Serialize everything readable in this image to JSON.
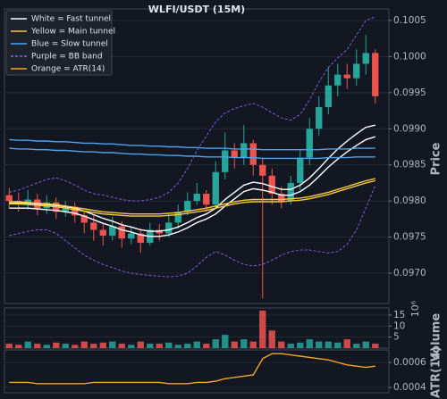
{
  "chart_data": {
    "type": "candlestick",
    "title": "WLFI/USDT (15M)",
    "y_label": "Price",
    "volume_label": "Volume",
    "volume_offset_label": "10⁶",
    "atr_label": "ATR(14)",
    "up_color": "#26a69a",
    "down_color": "#ef5350",
    "grid": true,
    "ylim": [
      0.09658,
      0.10066
    ],
    "yticks": [
      {
        "value": 0.097,
        "label": "0.0970"
      },
      {
        "value": 0.0975,
        "label": "0.0975"
      },
      {
        "value": 0.098,
        "label": "0.0980"
      },
      {
        "value": 0.0985,
        "label": "0.0985"
      },
      {
        "value": 0.099,
        "label": "0.0990"
      },
      {
        "value": 0.0995,
        "label": "0.0995"
      },
      {
        "value": 0.1,
        "label": "0.1000"
      },
      {
        "value": 0.1005,
        "label": "0.1005"
      }
    ],
    "volume_ylim": [
      0,
      18.2
    ],
    "volume_yticks": [
      5,
      10,
      15
    ],
    "atr_ylim": [
      0.000357,
      0.0007
    ],
    "atr_yticks": [
      0.0004,
      0.0006
    ],
    "open": [
      0.09808,
      0.098,
      0.09795,
      0.09802,
      0.0979,
      0.09798,
      0.09785,
      0.09792,
      0.0978,
      0.0977,
      0.0976,
      0.09752,
      0.09765,
      0.09748,
      0.09755,
      0.09742,
      0.0976,
      0.09755,
      0.0977,
      0.09785,
      0.098,
      0.0981,
      0.09795,
      0.0984,
      0.0987,
      0.0986,
      0.0988,
      0.0985,
      0.09835,
      0.0981,
      0.098,
      0.09825,
      0.0986,
      0.099,
      0.0993,
      0.0996,
      0.09975,
      0.0997,
      0.0999,
      0.10005
    ],
    "high": [
      0.09818,
      0.09812,
      0.09815,
      0.0981,
      0.09808,
      0.09805,
      0.098,
      0.09798,
      0.09785,
      0.0978,
      0.0977,
      0.09778,
      0.09772,
      0.09765,
      0.09762,
      0.0977,
      0.09768,
      0.09782,
      0.09795,
      0.09812,
      0.09825,
      0.09815,
      0.09855,
      0.09895,
      0.0988,
      0.09905,
      0.09885,
      0.0986,
      0.09845,
      0.0982,
      0.09835,
      0.0987,
      0.09915,
      0.09945,
      0.09985,
      0.0999,
      0.0999,
      0.1001,
      0.1003,
      0.1001
    ],
    "low": [
      0.0979,
      0.09785,
      0.09788,
      0.0978,
      0.09782,
      0.09775,
      0.09778,
      0.0977,
      0.09755,
      0.09745,
      0.09738,
      0.09745,
      0.09735,
      0.0974,
      0.09728,
      0.09738,
      0.09745,
      0.0975,
      0.09762,
      0.0978,
      0.09795,
      0.09785,
      0.0979,
      0.0983,
      0.09845,
      0.0985,
      0.09835,
      0.09665,
      0.09795,
      0.0979,
      0.09795,
      0.09815,
      0.0985,
      0.0989,
      0.0992,
      0.09945,
      0.09955,
      0.0996,
      0.09975,
      0.09935
    ],
    "close": [
      0.098,
      0.09795,
      0.09802,
      0.0979,
      0.09798,
      0.09785,
      0.09792,
      0.0978,
      0.0977,
      0.0976,
      0.09752,
      0.09765,
      0.09748,
      0.09755,
      0.09742,
      0.0976,
      0.09755,
      0.0977,
      0.09785,
      0.098,
      0.0981,
      0.09795,
      0.0984,
      0.0987,
      0.0986,
      0.0988,
      0.0985,
      0.09835,
      0.0981,
      0.098,
      0.09825,
      0.0986,
      0.099,
      0.0993,
      0.0996,
      0.09975,
      0.0997,
      0.0999,
      0.10005,
      0.09945
    ],
    "volume": [
      2,
      1.5,
      3,
      2,
      1.5,
      2.5,
      2,
      1.5,
      3,
      2,
      2.5,
      3,
      2,
      1.5,
      3,
      2,
      2,
      2.5,
      1.5,
      2,
      3,
      2,
      4,
      6,
      3,
      4,
      3,
      17,
      8,
      3,
      2,
      2.5,
      4,
      3,
      3,
      2.5,
      4,
      2,
      3,
      2
    ],
    "overlays": [
      {
        "name": "White = Fast tunnel",
        "color": "#ffffff",
        "panel": "price",
        "dash": false,
        "lines": [
          [
            0.09797,
            0.09797,
            0.09797,
            0.09796,
            0.09795,
            0.09794,
            0.09792,
            0.0979,
            0.09786,
            0.09781,
            0.09776,
            0.09772,
            0.09767,
            0.09764,
            0.0976,
            0.09758,
            0.09758,
            0.0976,
            0.09764,
            0.0977,
            0.09777,
            0.09782,
            0.0979,
            0.09802,
            0.09812,
            0.09822,
            0.09826,
            0.09824,
            0.0982,
            0.09816,
            0.09816,
            0.09822,
            0.09832,
            0.09845,
            0.09859,
            0.09872,
            0.09883,
            0.09893,
            0.09902,
            0.09905
          ],
          [
            0.0979,
            0.0979,
            0.0979,
            0.09789,
            0.09788,
            0.09787,
            0.09785,
            0.09783,
            0.09779,
            0.09774,
            0.09769,
            0.09765,
            0.0976,
            0.09757,
            0.09753,
            0.09751,
            0.09751,
            0.09753,
            0.09757,
            0.09763,
            0.0977,
            0.09775,
            0.09782,
            0.09793,
            0.09803,
            0.09813,
            0.09817,
            0.09815,
            0.09812,
            0.09808,
            0.09808,
            0.09813,
            0.09822,
            0.09834,
            0.09847,
            0.09858,
            0.09868,
            0.09877,
            0.09885,
            0.09889
          ]
        ]
      },
      {
        "name": "Yellow = Main tunnel",
        "color": "#f5c842",
        "panel": "price",
        "dash": false,
        "lines": [
          [
            0.09799,
            0.09799,
            0.09798,
            0.09797,
            0.09796,
            0.09795,
            0.09793,
            0.09791,
            0.09789,
            0.09787,
            0.09785,
            0.09784,
            0.09783,
            0.09782,
            0.09782,
            0.09782,
            0.09782,
            0.09783,
            0.09784,
            0.09786,
            0.09788,
            0.0979,
            0.09793,
            0.09796,
            0.09799,
            0.09801,
            0.09802,
            0.09802,
            0.09802,
            0.09802,
            0.09803,
            0.09804,
            0.09806,
            0.09809,
            0.09812,
            0.09816,
            0.0982,
            0.09824,
            0.09828,
            0.09831
          ],
          [
            0.09796,
            0.09796,
            0.09795,
            0.09794,
            0.09793,
            0.09792,
            0.0979,
            0.09788,
            0.09786,
            0.09784,
            0.09782,
            0.09781,
            0.0978,
            0.09779,
            0.09779,
            0.09779,
            0.09779,
            0.0978,
            0.09781,
            0.09783,
            0.09785,
            0.09787,
            0.0979,
            0.09793,
            0.09796,
            0.09798,
            0.09799,
            0.09799,
            0.09799,
            0.09799,
            0.098,
            0.09801,
            0.09803,
            0.09806,
            0.09809,
            0.09813,
            0.09817,
            0.09821,
            0.09825,
            0.09828
          ]
        ]
      },
      {
        "name": "Blue = Slow tunnel",
        "color": "#4da3f0",
        "panel": "price",
        "dash": false,
        "lines": [
          [
            0.09885,
            0.09884,
            0.09884,
            0.09883,
            0.09883,
            0.09882,
            0.09882,
            0.09881,
            0.0988,
            0.0988,
            0.09879,
            0.09879,
            0.09878,
            0.09877,
            0.09877,
            0.09876,
            0.09876,
            0.09875,
            0.09875,
            0.09874,
            0.09874,
            0.09873,
            0.09873,
            0.09873,
            0.09872,
            0.09872,
            0.09872,
            0.09871,
            0.09871,
            0.09871,
            0.09871,
            0.09871,
            0.09871,
            0.09871,
            0.09872,
            0.09872,
            0.09872,
            0.09873,
            0.09873,
            0.09873
          ],
          [
            0.09873,
            0.09872,
            0.09872,
            0.09871,
            0.09871,
            0.0987,
            0.0987,
            0.09869,
            0.09868,
            0.09868,
            0.09867,
            0.09867,
            0.09866,
            0.09865,
            0.09865,
            0.09864,
            0.09864,
            0.09863,
            0.09863,
            0.09862,
            0.09862,
            0.09861,
            0.09861,
            0.09861,
            0.0986,
            0.0986,
            0.0986,
            0.09859,
            0.09859,
            0.09859,
            0.09859,
            0.09859,
            0.09859,
            0.09859,
            0.0986,
            0.0986,
            0.0986,
            0.09861,
            0.09861,
            0.09861
          ]
        ]
      },
      {
        "name": "Purple = BB band",
        "color": "#8a63f0",
        "panel": "price",
        "dash": true,
        "lines": [
          [
            0.09812,
            0.09815,
            0.0982,
            0.09825,
            0.0983,
            0.09832,
            0.09828,
            0.09822,
            0.09815,
            0.0981,
            0.09808,
            0.09805,
            0.09802,
            0.098,
            0.098,
            0.09802,
            0.09805,
            0.09812,
            0.09825,
            0.09845,
            0.0987,
            0.0989,
            0.0991,
            0.09922,
            0.09928,
            0.09932,
            0.09935,
            0.0993,
            0.09922,
            0.09915,
            0.09912,
            0.0992,
            0.0994,
            0.09965,
            0.09985,
            0.09998,
            0.1001,
            0.1003,
            0.1005,
            0.10055
          ],
          [
            0.09752,
            0.09755,
            0.09758,
            0.0976,
            0.0976,
            0.09755,
            0.09745,
            0.09735,
            0.09725,
            0.09718,
            0.09712,
            0.09708,
            0.09703,
            0.097,
            0.09698,
            0.09697,
            0.09696,
            0.09695,
            0.09696,
            0.097,
            0.0971,
            0.09722,
            0.0973,
            0.09725,
            0.09718,
            0.09712,
            0.0971,
            0.09712,
            0.09718,
            0.09725,
            0.0973,
            0.09732,
            0.09732,
            0.0973,
            0.09728,
            0.0973,
            0.0974,
            0.0976,
            0.0979,
            0.09822
          ]
        ]
      },
      {
        "name": "Orange = ATR(14)",
        "color": "#f5a623",
        "panel": "atr",
        "dash": false,
        "lines": [
          [
            0.00044,
            0.00044,
            0.00044,
            0.00043,
            0.00043,
            0.00043,
            0.00043,
            0.00043,
            0.00043,
            0.00044,
            0.00044,
            0.00044,
            0.00044,
            0.00044,
            0.00044,
            0.00044,
            0.00044,
            0.00043,
            0.00043,
            0.00043,
            0.00044,
            0.00044,
            0.00045,
            0.00047,
            0.00048,
            0.00049,
            0.0005,
            0.00063,
            0.00067,
            0.00067,
            0.00066,
            0.00065,
            0.00064,
            0.00063,
            0.00062,
            0.0006,
            0.00058,
            0.00057,
            0.00056,
            0.00057
          ]
        ]
      }
    ]
  }
}
